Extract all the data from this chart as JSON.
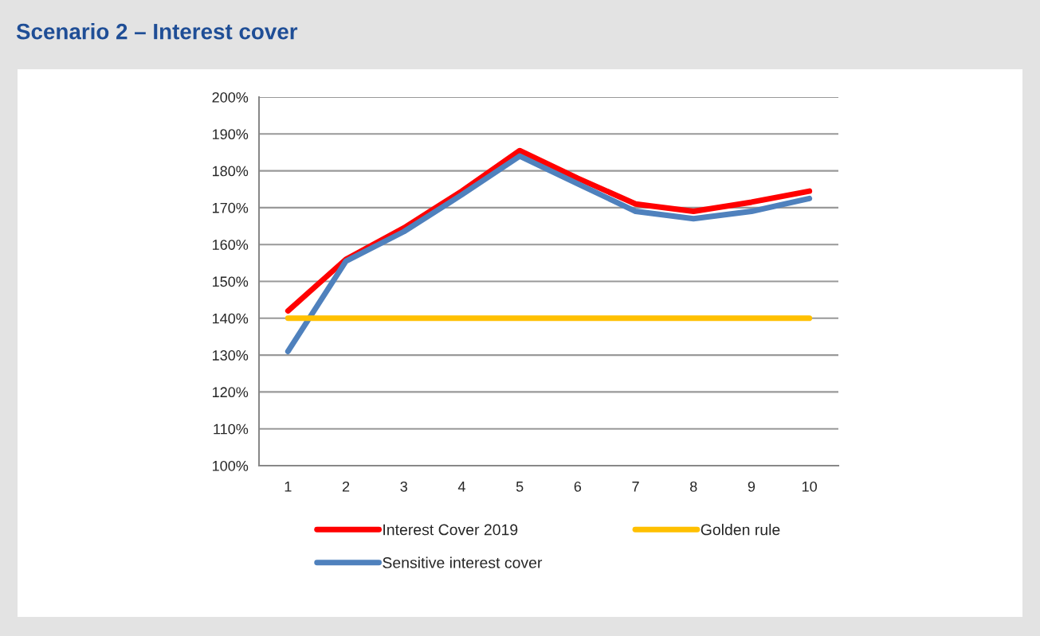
{
  "chart_data": {
    "type": "line",
    "title": "Scenario 2 – Interest cover",
    "categories": [
      "1",
      "2",
      "3",
      "4",
      "5",
      "6",
      "7",
      "8",
      "9",
      "10"
    ],
    "series": [
      {
        "name": "Interest Cover 2019",
        "color": "#ff0000",
        "values": [
          142,
          156,
          164.5,
          174.5,
          185.5,
          178,
          171,
          169,
          171.5,
          174.5
        ]
      },
      {
        "name": "Sensitive interest cover",
        "color": "#4f81bd",
        "values": [
          131,
          155.5,
          163.5,
          173.5,
          184,
          176.5,
          169,
          167,
          169,
          172.5
        ]
      },
      {
        "name": "Golden rule",
        "color": "#ffc000",
        "values": [
          140,
          140,
          140,
          140,
          140,
          140,
          140,
          140,
          140,
          140
        ]
      }
    ],
    "ylim": [
      100,
      200
    ],
    "yticks": [
      {
        "value": 100,
        "label": "100%"
      },
      {
        "value": 110,
        "label": "110%"
      },
      {
        "value": 120,
        "label": "120%"
      },
      {
        "value": 130,
        "label": "130%"
      },
      {
        "value": 140,
        "label": "140%"
      },
      {
        "value": 150,
        "label": "150%"
      },
      {
        "value": 160,
        "label": "160%"
      },
      {
        "value": 170,
        "label": "170%"
      },
      {
        "value": 180,
        "label": "180%"
      },
      {
        "value": 190,
        "label": "190%"
      },
      {
        "value": 200,
        "label": "200%"
      }
    ],
    "grid": "y",
    "legend": "bottom",
    "marker": "none",
    "line_style": "solid"
  }
}
